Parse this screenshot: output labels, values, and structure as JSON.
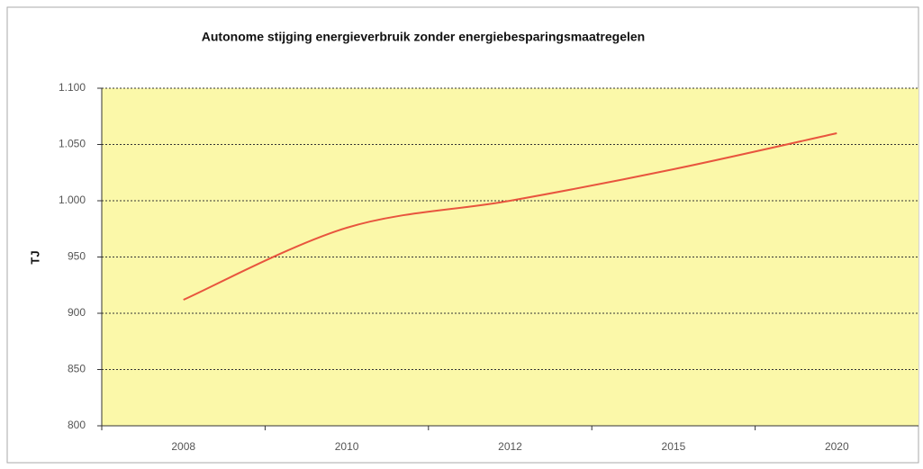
{
  "chart_data": {
    "type": "line",
    "title": "Autonome stijging energieverbruik zonder energiebesparingsmaatregelen",
    "y_label": "TJ",
    "categories": [
      "2008",
      "2010",
      "2012",
      "2015",
      "2020"
    ],
    "series": [
      {
        "name": "TJ",
        "color": "#e8553e",
        "values": [
          912,
          976,
          1000,
          1028,
          1060
        ]
      }
    ],
    "ylim": [
      800,
      1100
    ],
    "yticks": [
      800,
      850,
      900,
      950,
      {
        "value": 1000,
        "label": "1.000"
      },
      {
        "value": 1050,
        "label": "1.050"
      },
      {
        "value": 1100,
        "label": "1.100"
      }
    ],
    "grid": true,
    "plot_background": "#fbf8a9"
  }
}
